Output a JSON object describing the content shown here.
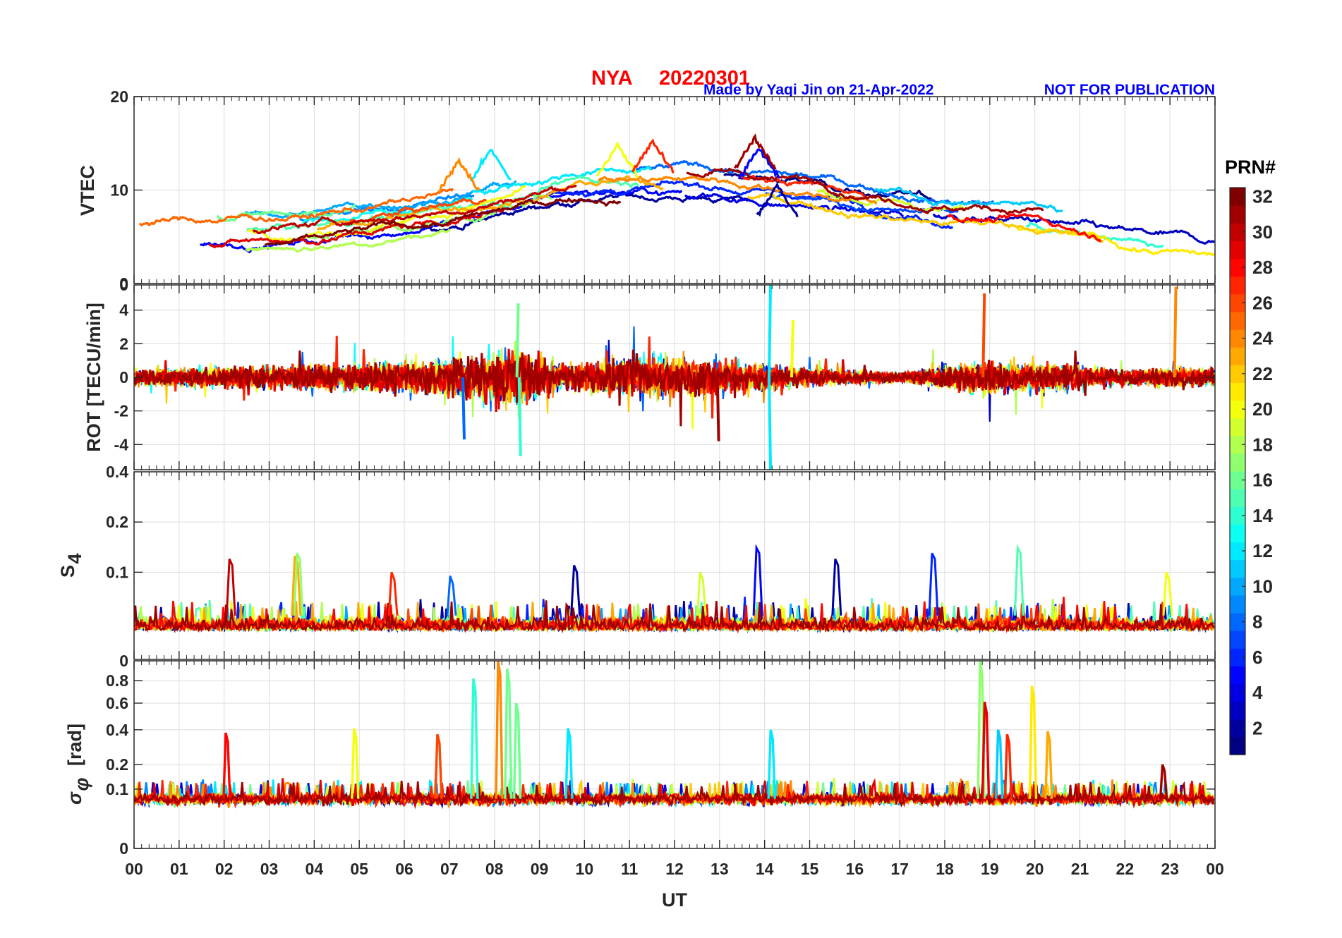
{
  "title": {
    "station": "NYA",
    "date": "20220301",
    "made_by": "Made by Yaqi Jin on 21-Apr-2022",
    "notice": "NOT FOR PUBLICATION",
    "title_color": "#ff0000",
    "credit_color": "#0000ff"
  },
  "colorbar": {
    "label": "PRN#",
    "ticks": [
      2,
      4,
      6,
      8,
      10,
      12,
      14,
      16,
      18,
      20,
      22,
      24,
      26,
      28,
      30,
      32
    ],
    "min": 1,
    "max": 32,
    "colormap": "jet"
  },
  "x_axis": {
    "label": "UT",
    "ticks": [
      "00",
      "01",
      "02",
      "03",
      "04",
      "05",
      "06",
      "07",
      "08",
      "09",
      "10",
      "11",
      "12",
      "13",
      "14",
      "15",
      "16",
      "17",
      "18",
      "19",
      "20",
      "21",
      "22",
      "23",
      "00"
    ]
  },
  "chart_data": [
    {
      "type": "line",
      "panel": "vtec",
      "ylabel": "VTEC",
      "ylim": [
        0,
        20
      ],
      "yticks": [
        0,
        10,
        20
      ],
      "x_range_hours": [
        0,
        24
      ],
      "baseline_profile": [
        [
          0,
          5
        ],
        [
          4,
          6
        ],
        [
          7,
          8
        ],
        [
          10,
          11
        ],
        [
          13,
          11
        ],
        [
          15,
          10
        ],
        [
          18,
          8
        ],
        [
          20,
          7.5
        ],
        [
          22,
          5.5
        ],
        [
          24,
          4.5
        ]
      ],
      "noise": 2.4,
      "series": [
        {
          "prn": 2,
          "peak_value": 10.5
        },
        {
          "prn": 5,
          "peak_value": 14.5
        },
        {
          "prn": 12,
          "peak_value": 14.3
        },
        {
          "prn": 20,
          "peak_value": 14.8
        },
        {
          "prn": 24,
          "peak_value": 13.2
        },
        {
          "prn": 27,
          "peak_value": 15.2
        },
        {
          "prn": 31,
          "peak_value": 15.6
        }
      ]
    },
    {
      "type": "line",
      "panel": "rot",
      "ylabel": "ROT [TECU/min]",
      "ylim": [
        -5.5,
        5.5
      ],
      "yticks": [
        -4,
        -2,
        0,
        2,
        4
      ],
      "ytick_labels": [
        "-4",
        "-2",
        "0",
        "2",
        "4"
      ],
      "top_label": "0",
      "activity_profile": [
        [
          0,
          0.5
        ],
        [
          2,
          0.7
        ],
        [
          5,
          0.8
        ],
        [
          7,
          1.2
        ],
        [
          8.5,
          1.8
        ],
        [
          9.5,
          0.8
        ],
        [
          11.5,
          1.3
        ],
        [
          13,
          1.1
        ],
        [
          15,
          0.6
        ],
        [
          17,
          0.3
        ],
        [
          19,
          1.1
        ],
        [
          20.5,
          0.9
        ],
        [
          22,
          0.5
        ],
        [
          24,
          0.6
        ]
      ],
      "spikes": [
        {
          "x": 14.1,
          "value": 5.5,
          "prn": 12
        },
        {
          "x": 14.1,
          "value": -5.5,
          "prn": 12
        },
        {
          "x": 18.85,
          "value": 5.0,
          "prn": 26
        },
        {
          "x": 23.1,
          "value": 5.4,
          "prn": 24
        },
        {
          "x": 8.55,
          "value": -4.7,
          "prn": 14
        },
        {
          "x": 8.5,
          "value": 4.4,
          "prn": 16
        },
        {
          "x": 12.95,
          "value": -3.8,
          "prn": 31
        },
        {
          "x": 7.3,
          "value": -3.7,
          "prn": 8
        },
        {
          "x": 14.6,
          "value": 3.4,
          "prn": 20
        }
      ]
    },
    {
      "type": "line",
      "panel": "s4",
      "ylabel": "S4",
      "ylabel_main": "S",
      "ylabel_sub": "4",
      "ylim": [
        0.03,
        0.4
      ],
      "yticks": [
        0.1,
        0.2
      ],
      "ytick_labels": [
        "0.1",
        "0.2"
      ],
      "top_label": "0.4",
      "baseline": 0.045,
      "spikes": [
        {
          "x": 2.15,
          "value": 0.12,
          "prn": 30
        },
        {
          "x": 3.6,
          "value": 0.125,
          "prn": 23
        },
        {
          "x": 3.65,
          "value": 0.13,
          "prn": 17
        },
        {
          "x": 5.75,
          "value": 0.1,
          "prn": 27
        },
        {
          "x": 7.05,
          "value": 0.095,
          "prn": 8
        },
        {
          "x": 9.8,
          "value": 0.11,
          "prn": 2
        },
        {
          "x": 12.6,
          "value": 0.1,
          "prn": 19
        },
        {
          "x": 13.85,
          "value": 0.14,
          "prn": 5
        },
        {
          "x": 15.6,
          "value": 0.12,
          "prn": 2
        },
        {
          "x": 17.75,
          "value": 0.13,
          "prn": 6
        },
        {
          "x": 19.65,
          "value": 0.14,
          "prn": 15
        },
        {
          "x": 22.95,
          "value": 0.1,
          "prn": 20
        }
      ]
    },
    {
      "type": "line",
      "panel": "sigma_phi",
      "ylabel": "σφ [rad]",
      "ylabel_main": "σ",
      "ylabel_sub": "φ",
      "ylabel_unit": "[rad]",
      "ylim": [
        0,
        1
      ],
      "yticks": [
        0,
        0.1,
        0.2,
        0.4,
        0.6,
        0.8
      ],
      "ytick_labels": [
        "0",
        "0.1",
        "0.2",
        "0.4",
        "0.6",
        "0.8"
      ],
      "top_label": "0",
      "baseline": 0.07,
      "spikes": [
        {
          "x": 2.05,
          "value": 0.38,
          "prn": 28
        },
        {
          "x": 4.9,
          "value": 0.41,
          "prn": 20
        },
        {
          "x": 6.75,
          "value": 0.37,
          "prn": 26
        },
        {
          "x": 7.55,
          "value": 0.82,
          "prn": 14
        },
        {
          "x": 8.1,
          "value": 1.0,
          "prn": 24
        },
        {
          "x": 8.3,
          "value": 0.92,
          "prn": 16
        },
        {
          "x": 8.5,
          "value": 0.6,
          "prn": 16
        },
        {
          "x": 9.65,
          "value": 0.41,
          "prn": 12
        },
        {
          "x": 14.15,
          "value": 0.4,
          "prn": 12
        },
        {
          "x": 18.8,
          "value": 1.0,
          "prn": 17
        },
        {
          "x": 18.9,
          "value": 0.61,
          "prn": 29
        },
        {
          "x": 19.2,
          "value": 0.4,
          "prn": 11
        },
        {
          "x": 19.4,
          "value": 0.37,
          "prn": 27
        },
        {
          "x": 19.95,
          "value": 0.75,
          "prn": 21
        },
        {
          "x": 20.3,
          "value": 0.39,
          "prn": 23
        },
        {
          "x": 22.85,
          "value": 0.2,
          "prn": 31
        }
      ]
    }
  ]
}
